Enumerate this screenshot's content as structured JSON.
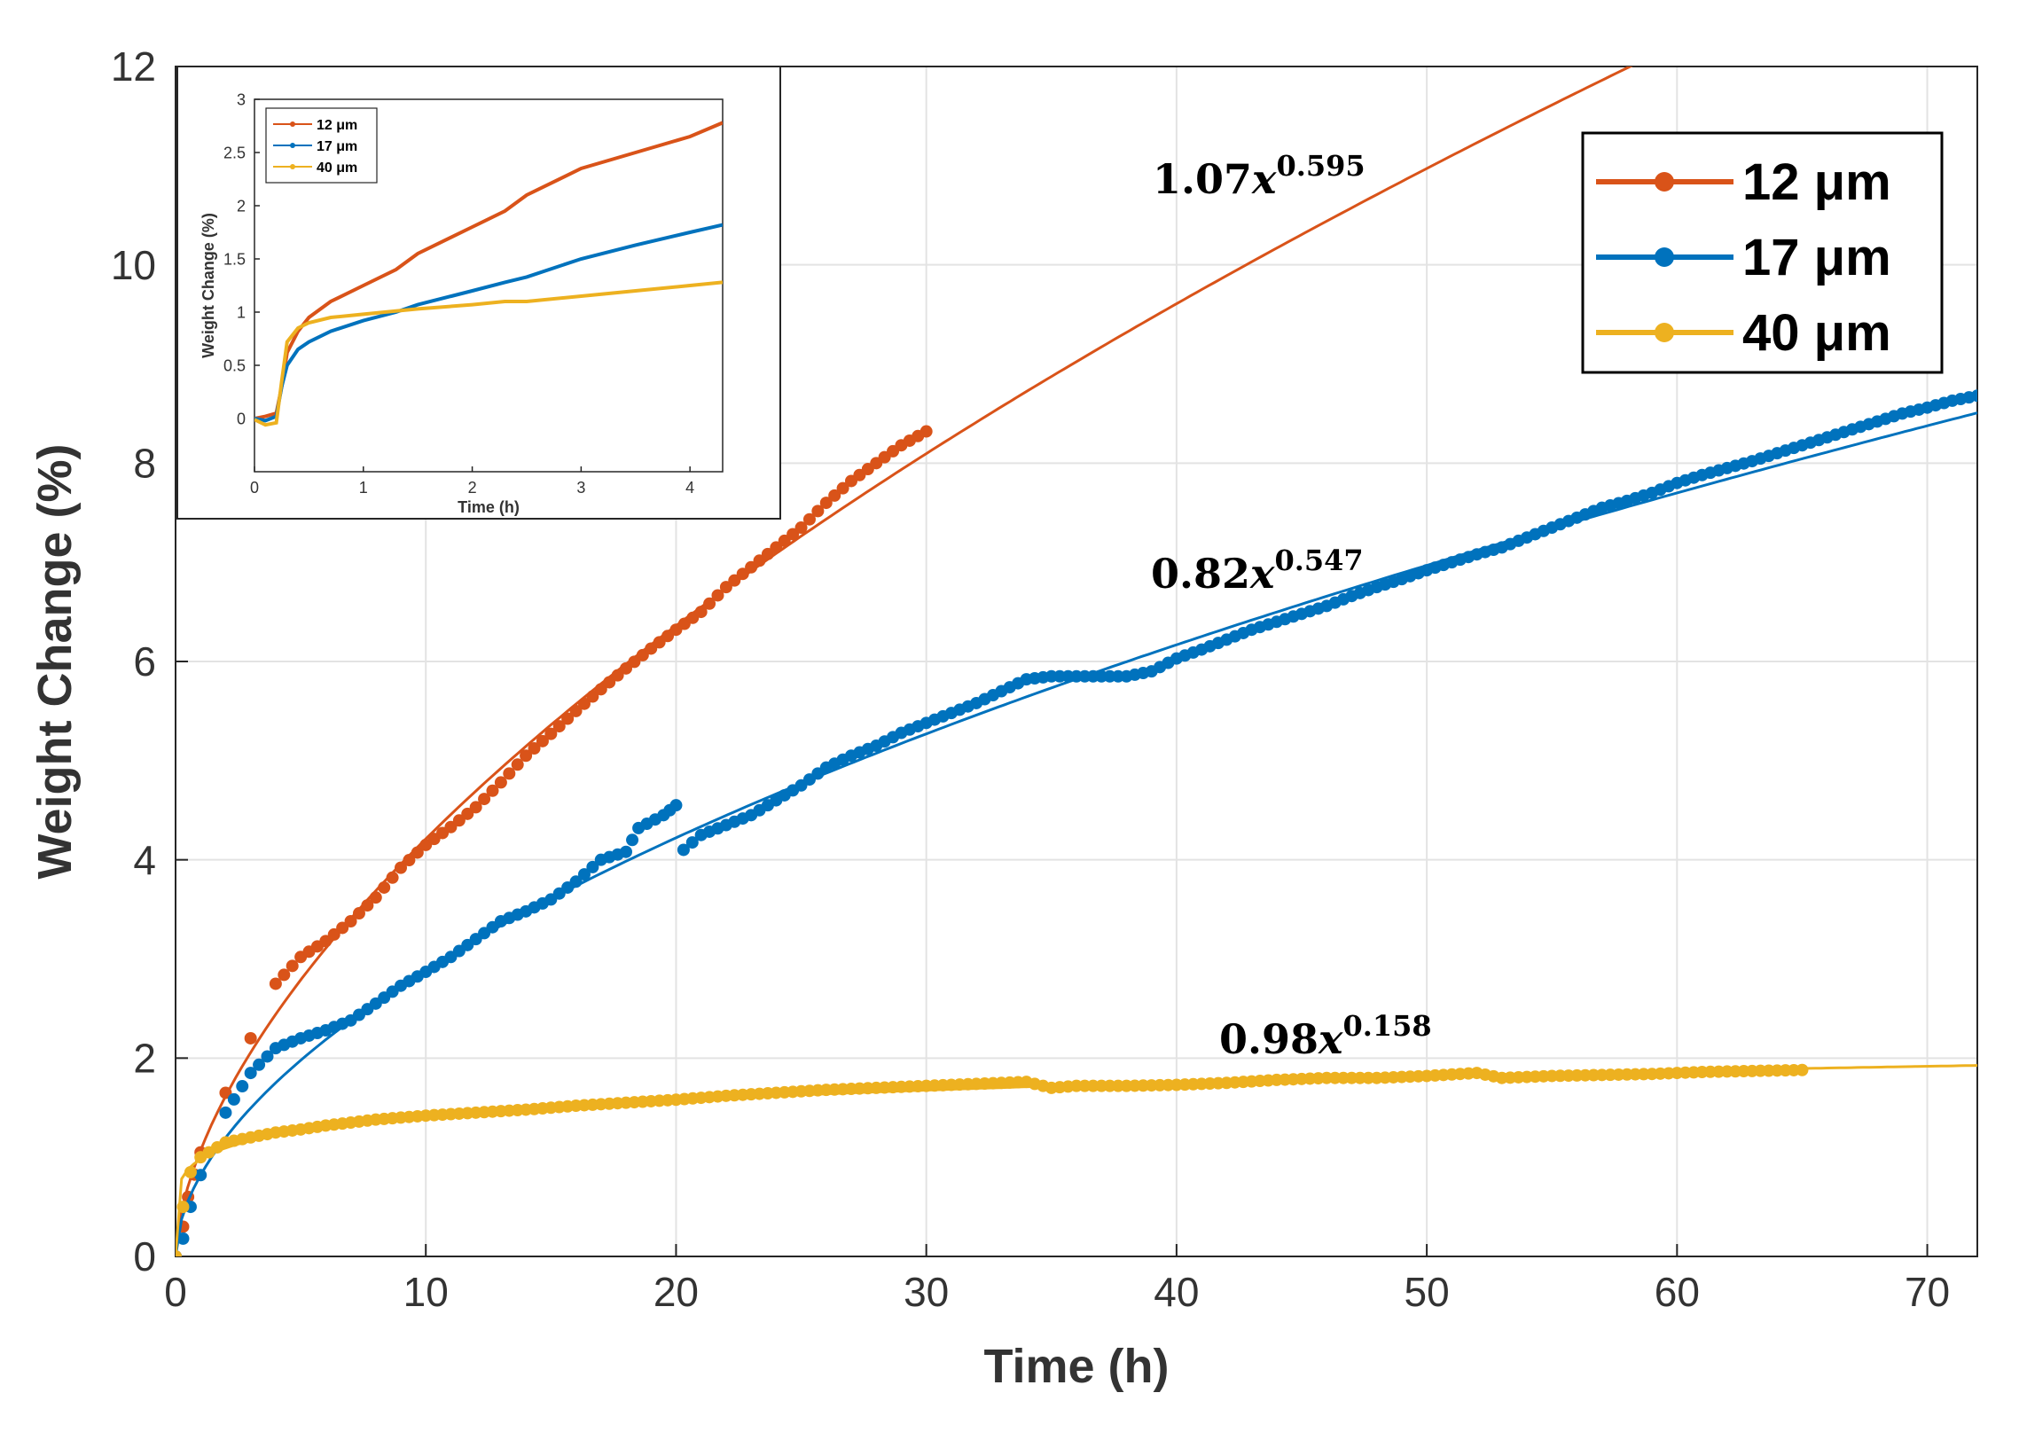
{
  "chart_data": [
    {
      "type": "scatter",
      "xlabel": "Time (h)",
      "ylabel": "Weight Change (%)",
      "xlim": [
        0,
        72
      ],
      "ylim": [
        0,
        12
      ],
      "xticks": [
        0,
        10,
        20,
        30,
        40,
        50,
        60,
        70
      ],
      "yticks": [
        0,
        2,
        4,
        6,
        8,
        10,
        12
      ],
      "grid": true,
      "legend": "top-right",
      "series": [
        {
          "name": "12 μm",
          "color": "#D95319",
          "points": [
            [
              0,
              0
            ],
            [
              0.3,
              0.3
            ],
            [
              0.5,
              0.6
            ],
            [
              1,
              1.05
            ],
            [
              2,
              1.65
            ],
            [
              3,
              2.2
            ],
            [
              4,
              2.75
            ],
            [
              5,
              3.02
            ],
            [
              6,
              3.18
            ],
            [
              7,
              3.38
            ],
            [
              8,
              3.62
            ],
            [
              9,
              3.92
            ],
            [
              10,
              4.15
            ],
            [
              11,
              4.33
            ],
            [
              12,
              4.53
            ],
            [
              13,
              4.78
            ],
            [
              14,
              5.05
            ],
            [
              15,
              5.27
            ],
            [
              16,
              5.5
            ],
            [
              17,
              5.72
            ],
            [
              18,
              5.93
            ],
            [
              19,
              6.13
            ],
            [
              20,
              6.32
            ],
            [
              21,
              6.5
            ],
            [
              22,
              6.75
            ],
            [
              23,
              6.95
            ],
            [
              24,
              7.15
            ],
            [
              25,
              7.35
            ],
            [
              26,
              7.6
            ],
            [
              27,
              7.82
            ],
            [
              28,
              8.0
            ],
            [
              29,
              8.18
            ],
            [
              30,
              8.32
            ]
          ],
          "fit": {
            "label": "1.07x^0.595",
            "a": 1.07,
            "b": 0.595
          }
        },
        {
          "name": "17 μm",
          "color": "#0072BD",
          "points": [
            [
              0,
              0
            ],
            [
              0.3,
              0.18
            ],
            [
              0.6,
              0.5
            ],
            [
              1,
              0.82
            ],
            [
              2,
              1.45
            ],
            [
              3,
              1.85
            ],
            [
              4,
              2.1
            ],
            [
              5,
              2.2
            ],
            [
              6,
              2.28
            ],
            [
              7,
              2.38
            ],
            [
              8,
              2.55
            ],
            [
              9,
              2.73
            ],
            [
              10,
              2.87
            ],
            [
              11,
              3.02
            ],
            [
              12,
              3.2
            ],
            [
              13,
              3.38
            ],
            [
              14,
              3.48
            ],
            [
              15,
              3.6
            ],
            [
              16,
              3.78
            ],
            [
              17,
              4.0
            ],
            [
              18,
              4.08
            ],
            [
              18.5,
              4.32
            ],
            [
              19.5,
              4.45
            ],
            [
              20,
              4.55
            ],
            [
              20.3,
              4.1
            ],
            [
              21,
              4.25
            ],
            [
              22,
              4.35
            ],
            [
              23,
              4.45
            ],
            [
              24,
              4.6
            ],
            [
              25,
              4.75
            ],
            [
              26,
              4.93
            ],
            [
              27,
              5.05
            ],
            [
              28,
              5.15
            ],
            [
              29,
              5.28
            ],
            [
              30,
              5.38
            ],
            [
              31,
              5.48
            ],
            [
              32,
              5.58
            ],
            [
              33,
              5.7
            ],
            [
              34,
              5.82
            ],
            [
              35,
              5.85
            ],
            [
              36,
              5.85
            ],
            [
              37,
              5.85
            ],
            [
              38,
              5.85
            ],
            [
              39,
              5.9
            ],
            [
              40,
              6.03
            ],
            [
              41,
              6.12
            ],
            [
              42,
              6.22
            ],
            [
              43,
              6.32
            ],
            [
              44,
              6.4
            ],
            [
              45,
              6.48
            ],
            [
              46,
              6.56
            ],
            [
              47,
              6.66
            ],
            [
              48,
              6.75
            ],
            [
              49,
              6.83
            ],
            [
              50,
              6.92
            ],
            [
              51,
              7.0
            ],
            [
              52,
              7.08
            ],
            [
              53,
              7.15
            ],
            [
              54,
              7.25
            ],
            [
              55,
              7.35
            ],
            [
              56,
              7.45
            ],
            [
              57,
              7.55
            ],
            [
              58,
              7.62
            ],
            [
              59,
              7.7
            ],
            [
              60,
              7.8
            ],
            [
              61,
              7.88
            ],
            [
              62,
              7.95
            ],
            [
              63,
              8.02
            ],
            [
              64,
              8.1
            ],
            [
              65,
              8.18
            ],
            [
              66,
              8.26
            ],
            [
              67,
              8.34
            ],
            [
              68,
              8.42
            ],
            [
              69,
              8.5
            ],
            [
              70,
              8.56
            ],
            [
              71,
              8.63
            ],
            [
              72,
              8.68
            ]
          ],
          "fit": {
            "label": "0.82x^0.547",
            "a": 0.82,
            "b": 0.547
          }
        },
        {
          "name": "40 μm",
          "color": "#EDB120",
          "points": [
            [
              0,
              0
            ],
            [
              0.3,
              0.5
            ],
            [
              0.6,
              0.85
            ],
            [
              1,
              1.0
            ],
            [
              2,
              1.15
            ],
            [
              3,
              1.2
            ],
            [
              4,
              1.25
            ],
            [
              5,
              1.28
            ],
            [
              6,
              1.32
            ],
            [
              7,
              1.35
            ],
            [
              8,
              1.38
            ],
            [
              9,
              1.4
            ],
            [
              10,
              1.42
            ],
            [
              12,
              1.45
            ],
            [
              14,
              1.48
            ],
            [
              16,
              1.52
            ],
            [
              18,
              1.55
            ],
            [
              20,
              1.58
            ],
            [
              22,
              1.62
            ],
            [
              24,
              1.65
            ],
            [
              26,
              1.68
            ],
            [
              28,
              1.7
            ],
            [
              30,
              1.72
            ],
            [
              32,
              1.74
            ],
            [
              34,
              1.76
            ],
            [
              35,
              1.7
            ],
            [
              36,
              1.72
            ],
            [
              38,
              1.72
            ],
            [
              40,
              1.73
            ],
            [
              42,
              1.75
            ],
            [
              44,
              1.78
            ],
            [
              46,
              1.8
            ],
            [
              48,
              1.8
            ],
            [
              50,
              1.82
            ],
            [
              52,
              1.85
            ],
            [
              53,
              1.8
            ],
            [
              55,
              1.82
            ],
            [
              57,
              1.83
            ],
            [
              59,
              1.84
            ],
            [
              61,
              1.86
            ],
            [
              63,
              1.87
            ],
            [
              65,
              1.88
            ]
          ],
          "fit": {
            "label": "0.98x^0.158",
            "a": 0.98,
            "b": 0.158
          }
        }
      ]
    },
    {
      "type": "line",
      "xlabel": "Time (h)",
      "ylabel": "Weight Change (%)",
      "xlim": [
        0,
        4.3
      ],
      "ylim": [
        -0.5,
        3
      ],
      "xticks": [
        0,
        1,
        2,
        3,
        4
      ],
      "yticks": [
        0,
        0.5,
        1,
        1.5,
        2,
        2.5,
        3
      ],
      "legend": "top-left",
      "series": [
        {
          "name": "12 μm",
          "color": "#D95319",
          "points": [
            [
              0,
              0
            ],
            [
              0.1,
              0.02
            ],
            [
              0.2,
              0.05
            ],
            [
              0.25,
              0.3
            ],
            [
              0.3,
              0.62
            ],
            [
              0.4,
              0.82
            ],
            [
              0.5,
              0.95
            ],
            [
              0.7,
              1.1
            ],
            [
              1,
              1.25
            ],
            [
              1.3,
              1.4
            ],
            [
              1.5,
              1.55
            ],
            [
              2,
              1.8
            ],
            [
              2.3,
              1.95
            ],
            [
              2.5,
              2.1
            ],
            [
              3,
              2.35
            ],
            [
              3.5,
              2.5
            ],
            [
              4,
              2.65
            ],
            [
              4.3,
              2.78
            ]
          ]
        },
        {
          "name": "17 μm",
          "color": "#0072BD",
          "points": [
            [
              0,
              0
            ],
            [
              0.1,
              -0.02
            ],
            [
              0.2,
              0.02
            ],
            [
              0.25,
              0.3
            ],
            [
              0.3,
              0.5
            ],
            [
              0.4,
              0.65
            ],
            [
              0.5,
              0.72
            ],
            [
              0.7,
              0.82
            ],
            [
              1,
              0.92
            ],
            [
              1.3,
              1.0
            ],
            [
              1.5,
              1.07
            ],
            [
              2,
              1.2
            ],
            [
              2.3,
              1.28
            ],
            [
              2.5,
              1.33
            ],
            [
              3,
              1.5
            ],
            [
              3.5,
              1.63
            ],
            [
              4,
              1.75
            ],
            [
              4.3,
              1.82
            ]
          ]
        },
        {
          "name": "40 μm",
          "color": "#EDB120",
          "points": [
            [
              0,
              -0.01
            ],
            [
              0.1,
              -0.06
            ],
            [
              0.2,
              -0.04
            ],
            [
              0.25,
              0.35
            ],
            [
              0.3,
              0.72
            ],
            [
              0.4,
              0.85
            ],
            [
              0.5,
              0.9
            ],
            [
              0.7,
              0.95
            ],
            [
              1,
              0.98
            ],
            [
              1.3,
              1.01
            ],
            [
              1.5,
              1.03
            ],
            [
              2,
              1.07
            ],
            [
              2.3,
              1.1
            ],
            [
              2.5,
              1.1
            ],
            [
              3,
              1.15
            ],
            [
              3.5,
              1.2
            ],
            [
              4,
              1.25
            ],
            [
              4.3,
              1.28
            ]
          ]
        }
      ]
    }
  ]
}
